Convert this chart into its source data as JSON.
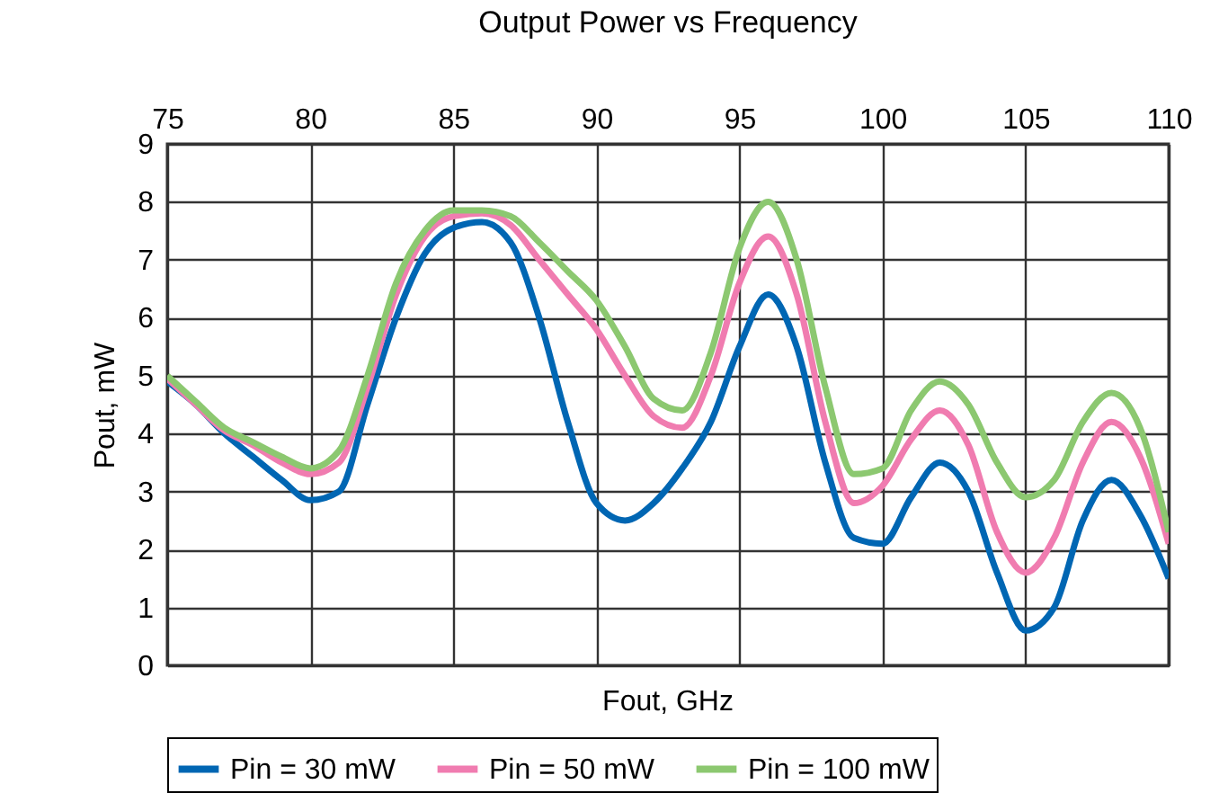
{
  "chart_data": {
    "type": "line",
    "title": "Output Power vs Frequency",
    "xlabel": "Fout, GHz",
    "ylabel": "Pout, mW",
    "x": [
      75,
      76,
      77,
      78,
      79,
      80,
      81,
      82,
      83,
      84,
      85,
      86,
      87,
      88,
      89,
      90,
      91,
      92,
      93,
      94,
      95,
      96,
      97,
      98,
      99,
      100,
      101,
      102,
      103,
      104,
      105,
      106,
      107,
      108,
      109,
      110
    ],
    "series": [
      {
        "name": "Pin = 30 mW",
        "color": "#0066b3",
        "values": [
          4.9,
          4.5,
          4.0,
          3.6,
          3.2,
          2.85,
          3.0,
          4.5,
          6.0,
          7.1,
          7.55,
          7.65,
          7.3,
          6.0,
          4.2,
          2.8,
          2.5,
          2.8,
          3.4,
          4.2,
          5.5,
          6.4,
          5.5,
          3.5,
          2.2,
          2.1,
          2.9,
          3.5,
          3.0,
          1.6,
          0.6,
          1.0,
          2.5,
          3.2,
          2.6,
          1.5
        ]
      },
      {
        "name": "Pin = 50 mW",
        "color": "#f07cb0",
        "values": [
          4.95,
          4.5,
          4.05,
          3.8,
          3.5,
          3.3,
          3.5,
          4.8,
          6.4,
          7.4,
          7.75,
          7.8,
          7.6,
          7.0,
          6.4,
          5.8,
          5.0,
          4.3,
          4.1,
          5.0,
          6.6,
          7.4,
          6.4,
          4.2,
          2.8,
          3.1,
          3.9,
          4.4,
          3.8,
          2.3,
          1.6,
          2.2,
          3.5,
          4.2,
          3.6,
          2.1
        ]
      },
      {
        "name": "Pin = 100 mW",
        "color": "#8cc870",
        "values": [
          5.0,
          4.55,
          4.1,
          3.85,
          3.6,
          3.4,
          3.7,
          5.0,
          6.6,
          7.5,
          7.85,
          7.85,
          7.75,
          7.3,
          6.8,
          6.3,
          5.5,
          4.6,
          4.4,
          5.4,
          7.2,
          8.0,
          7.0,
          4.8,
          3.3,
          3.4,
          4.4,
          4.9,
          4.5,
          3.5,
          2.9,
          3.2,
          4.2,
          4.7,
          4.1,
          2.3
        ]
      }
    ],
    "xlim": [
      75,
      110
    ],
    "xticks": [
      75,
      80,
      85,
      90,
      95,
      100,
      105,
      110
    ],
    "ylim": [
      0,
      9
    ],
    "yticks": [
      0,
      1,
      2,
      3,
      4,
      5,
      6,
      7,
      8,
      9
    ],
    "grid": true,
    "legend": "bottom",
    "marker": "none",
    "line_style": "solid"
  }
}
